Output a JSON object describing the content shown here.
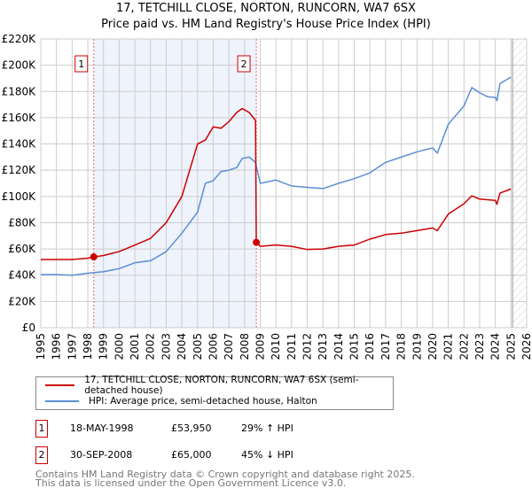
{
  "chart_data": {
    "type": "line",
    "title": "17, TETCHILL CLOSE, NORTON, RUNCORN, WA7 6SX",
    "subtitle": "Price paid vs. HM Land Registry's House Price Index (HPI)",
    "xlim": [
      1995,
      2026
    ],
    "ylim": [
      0,
      220000
    ],
    "grid": true,
    "x_ticks": [
      "1995",
      "1996",
      "1997",
      "1998",
      "1999",
      "2000",
      "2001",
      "2002",
      "2003",
      "2004",
      "2005",
      "2006",
      "2007",
      "2008",
      "2009",
      "2010",
      "2011",
      "2012",
      "2013",
      "2014",
      "2015",
      "2016",
      "2017",
      "2018",
      "2019",
      "2020",
      "2021",
      "2022",
      "2023",
      "2024",
      "2025",
      "2026"
    ],
    "y_ticks": [
      {
        "v": 0,
        "label": "£0"
      },
      {
        "v": 20000,
        "label": "£20K"
      },
      {
        "v": 40000,
        "label": "£40K"
      },
      {
        "v": 60000,
        "label": "£60K"
      },
      {
        "v": 80000,
        "label": "£80K"
      },
      {
        "v": 100000,
        "label": "£100K"
      },
      {
        "v": 120000,
        "label": "£120K"
      },
      {
        "v": 140000,
        "label": "£140K"
      },
      {
        "v": 160000,
        "label": "£160K"
      },
      {
        "v": 180000,
        "label": "£180K"
      },
      {
        "v": 200000,
        "label": "£200K"
      },
      {
        "v": 220000,
        "label": "£220K"
      }
    ],
    "series": [
      {
        "name": "17, TETCHILL CLOSE, NORTON, RUNCORN, WA7 6SX (semi-detached house)",
        "color": "#cc0000",
        "x": [
          1995,
          1996,
          1997,
          1998,
          1998.38,
          1999,
          2000,
          2001,
          2002,
          2003,
          2004,
          2005,
          2005.5,
          2006,
          2006.5,
          2007,
          2007.5,
          2007.85,
          2008.3,
          2008.7,
          2008.75,
          2009,
          2010,
          2011,
          2012,
          2013,
          2014,
          2015,
          2016,
          2017,
          2018,
          2019,
          2020,
          2020.3,
          2021,
          2022,
          2022.5,
          2023,
          2024,
          2024.1,
          2024.3,
          2025
        ],
        "y": [
          52000,
          52000,
          52000,
          53000,
          53950,
          55000,
          58000,
          63000,
          68000,
          80000,
          100000,
          140000,
          143000,
          153000,
          152000,
          157000,
          164000,
          167000,
          164000,
          158000,
          65000,
          62000,
          63000,
          62000,
          59600,
          60000,
          62000,
          63000,
          67500,
          71000,
          72000,
          74000,
          76000,
          74000,
          86600,
          94500,
          100500,
          98000,
          97000,
          94000,
          102600,
          105700
        ]
      },
      {
        "name": "HPI: Average price, semi-detached house, Halton",
        "color": "#5b8fd4",
        "x": [
          1995,
          1996,
          1997,
          1998,
          1999,
          2000,
          2001,
          2002,
          2003,
          2004,
          2005,
          2005.5,
          2006,
          2006.5,
          2007,
          2007.5,
          2007.85,
          2008.3,
          2008.7,
          2009,
          2010,
          2011,
          2012,
          2013,
          2014,
          2015,
          2016,
          2017,
          2018,
          2019,
          2020,
          2020.3,
          2021,
          2022,
          2022.5,
          2023,
          2023.5,
          2024,
          2024.1,
          2024.3,
          2025
        ],
        "y": [
          40500,
          40500,
          40000,
          41500,
          42700,
          45000,
          49500,
          51000,
          58000,
          72000,
          88000,
          110000,
          112000,
          119000,
          120000,
          122000,
          129000,
          130000,
          126000,
          110000,
          112500,
          108000,
          107000,
          106000,
          110000,
          113600,
          118000,
          126000,
          130000,
          134000,
          137000,
          133000,
          155000,
          169000,
          183000,
          179000,
          176000,
          175500,
          173000,
          186000,
          191000
        ]
      }
    ],
    "sales": [
      {
        "id": "1",
        "x": 1998.38,
        "y": 53950,
        "date": "18-MAY-1998",
        "price": "£53,950",
        "delta": "29% ↑ HPI"
      },
      {
        "id": "2",
        "x": 2008.75,
        "y": 65000,
        "date": "30-SEP-2008",
        "price": "£65,000",
        "delta": "45% ↓ HPI"
      }
    ],
    "forecast_start": 2025.1
  },
  "legend": {
    "property": "17, TETCHILL CLOSE, NORTON, RUNCORN, WA7 6SX (semi-detached house)",
    "hpi": "HPI: Average price, semi-detached house, Halton"
  },
  "footer": {
    "line1": "Contains HM Land Registry data © Crown copyright and database right 2025.",
    "line2": "This data is licensed under the Open Government Licence v3.0."
  }
}
